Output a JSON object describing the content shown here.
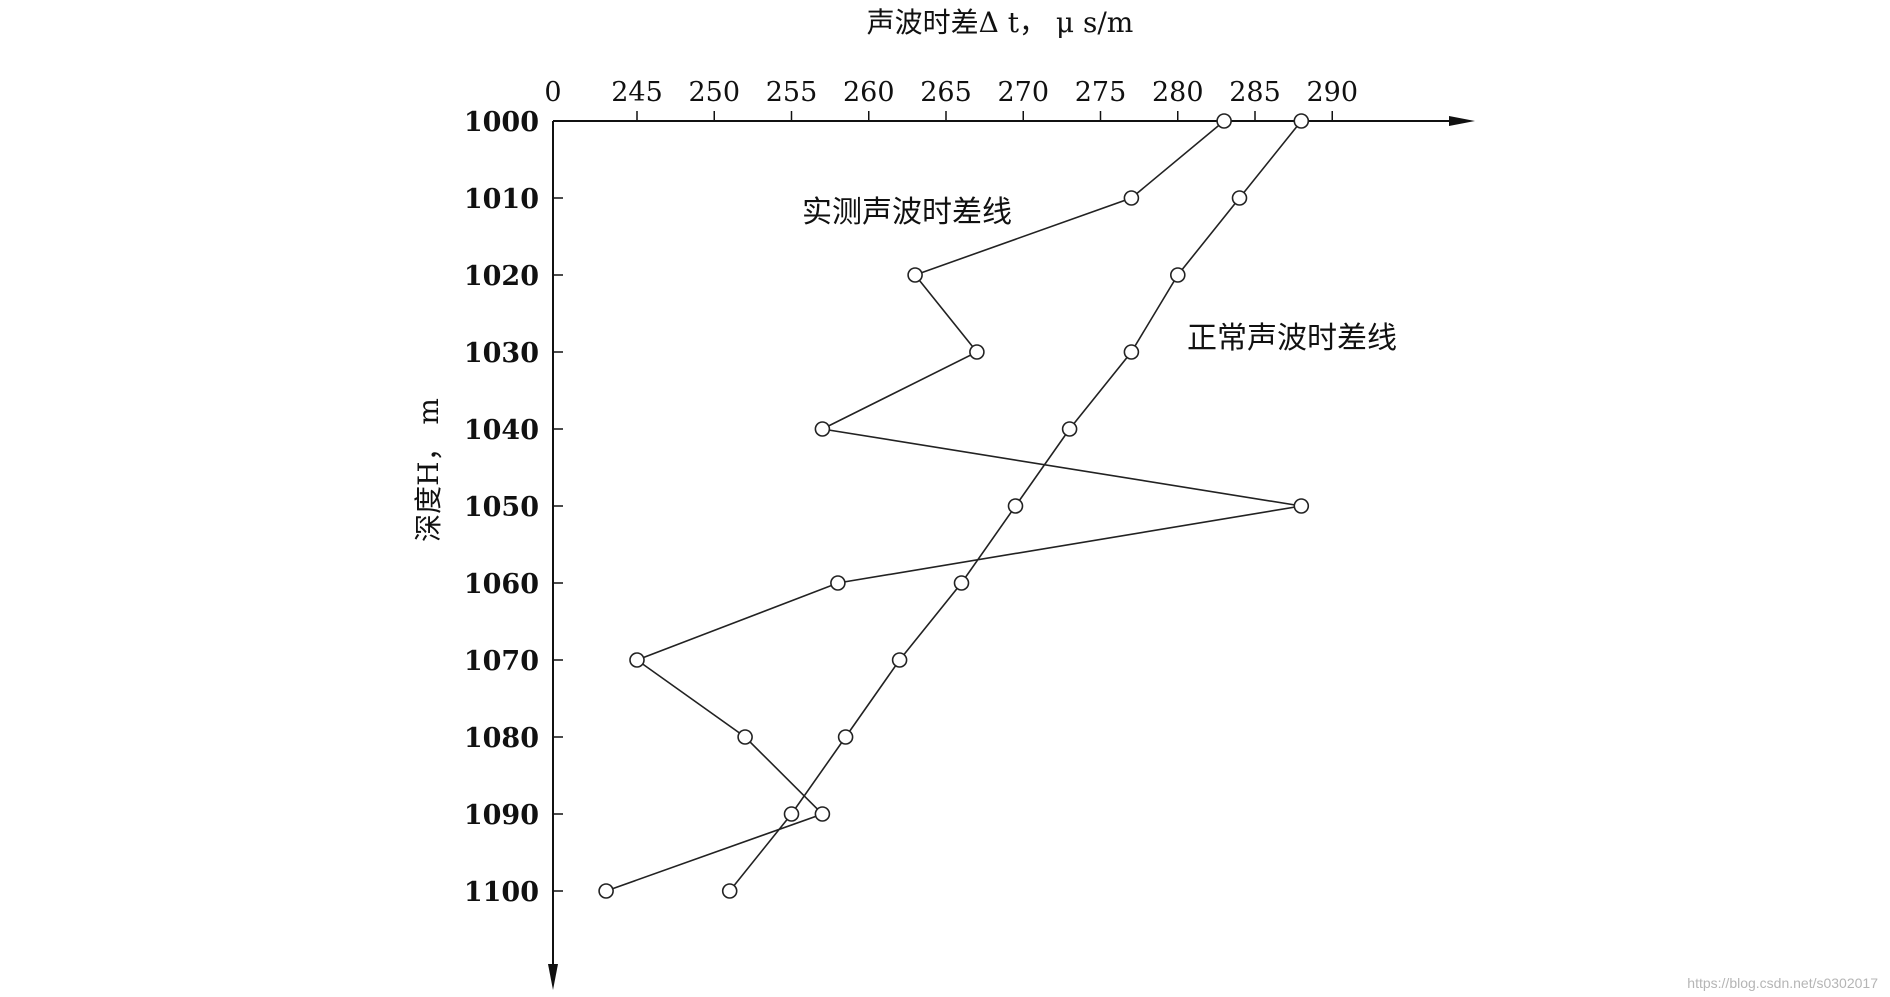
{
  "chart_data": {
    "type": "line",
    "title": "",
    "xlabel": "声波时差Δ t， μ s/m",
    "ylabel": "深度H， m",
    "x_ticks": [
      "0",
      "245",
      "250",
      "255",
      "260",
      "265",
      "270",
      "275",
      "280",
      "285",
      "290"
    ],
    "y_ticks": [
      "1000",
      "1010",
      "1020",
      "1030",
      "1040",
      "1050",
      "1060",
      "1070",
      "1080",
      "1090",
      "1100"
    ],
    "xlim": [
      240,
      300
    ],
    "ylim": [
      1000,
      1100
    ],
    "axis_break_after_zero": true,
    "x_axis_position": "top",
    "y_axis_inverted": true,
    "grid": false,
    "series": [
      {
        "name": "实测声波时差线",
        "marker": "circle",
        "points": [
          {
            "x": 283,
            "y": 1000
          },
          {
            "x": 277,
            "y": 1010
          },
          {
            "x": 263,
            "y": 1020
          },
          {
            "x": 267,
            "y": 1030
          },
          {
            "x": 257,
            "y": 1040
          },
          {
            "x": 288,
            "y": 1050
          },
          {
            "x": 258,
            "y": 1060
          },
          {
            "x": 245,
            "y": 1070
          },
          {
            "x": 252,
            "y": 1080
          },
          {
            "x": 257,
            "y": 1090
          },
          {
            "x": 243,
            "y": 1100
          }
        ]
      },
      {
        "name": "正常声波时差线",
        "marker": "circle",
        "points": [
          {
            "x": 288,
            "y": 1000
          },
          {
            "x": 284,
            "y": 1010
          },
          {
            "x": 280,
            "y": 1020
          },
          {
            "x": 277,
            "y": 1030
          },
          {
            "x": 273,
            "y": 1040
          },
          {
            "x": 269.5,
            "y": 1050
          },
          {
            "x": 266,
            "y": 1060
          },
          {
            "x": 262,
            "y": 1070
          },
          {
            "x": 258.5,
            "y": 1080
          },
          {
            "x": 255,
            "y": 1090
          },
          {
            "x": 251,
            "y": 1100
          }
        ]
      }
    ]
  },
  "watermark": "https://blog.csdn.net/s0302017"
}
